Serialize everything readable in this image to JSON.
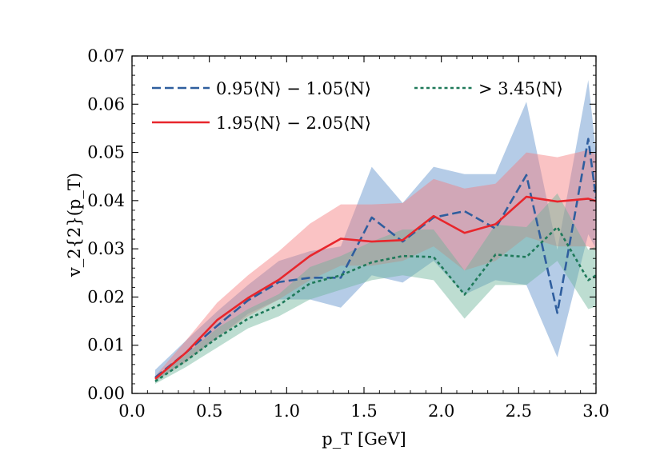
{
  "chart_data": {
    "type": "line",
    "title": "",
    "xlabel": "p_T [GeV]",
    "ylabel": "v_2{2}(p_T)",
    "xlim": [
      0.0,
      3.0
    ],
    "ylim": [
      0.0,
      0.07
    ],
    "xticks": [
      "0.0",
      "0.5",
      "1.0",
      "1.5",
      "2.0",
      "2.5",
      "3.0"
    ],
    "yticks": [
      "0.00",
      "0.01",
      "0.02",
      "0.03",
      "0.04",
      "0.05",
      "0.06",
      "0.07"
    ],
    "grid": false,
    "legend": "top-left",
    "x": [
      0.15,
      0.35,
      0.55,
      0.75,
      0.95,
      1.15,
      1.35,
      1.55,
      1.75,
      1.95,
      2.15,
      2.35,
      2.55,
      2.75,
      2.95,
      3.0
    ],
    "series": [
      {
        "name": "0.95⟨N⟩ − 1.05⟨N⟩",
        "style": "dashed",
        "color": "#2f5e9e",
        "fill": "#5b8fc9",
        "values": [
          0.0033,
          0.0085,
          0.014,
          0.0193,
          0.0231,
          0.024,
          0.024,
          0.0365,
          0.0315,
          0.0365,
          0.0378,
          0.0342,
          0.0453,
          0.0167,
          0.0528,
          0.0405
        ],
        "lower": [
          0.0025,
          0.0068,
          0.0115,
          0.0165,
          0.0195,
          0.0195,
          0.0178,
          0.0245,
          0.023,
          0.0275,
          0.0205,
          0.0235,
          0.0225,
          0.0075,
          0.033,
          0.03
        ],
        "upper": [
          0.0049,
          0.011,
          0.017,
          0.0225,
          0.0275,
          0.0295,
          0.0305,
          0.047,
          0.0395,
          0.047,
          0.0455,
          0.0455,
          0.0605,
          0.0298,
          0.065,
          0.05
        ]
      },
      {
        "name": "1.95⟨N⟩ − 2.05⟨N⟩",
        "style": "solid",
        "color": "#e8262c",
        "fill": "#f47a7c",
        "values": [
          0.003,
          0.0085,
          0.0152,
          0.0198,
          0.0236,
          0.0285,
          0.0321,
          0.0315,
          0.0318,
          0.0368,
          0.0333,
          0.0351,
          0.0408,
          0.0398,
          0.0404,
          0.0399
        ],
        "lower": [
          0.0025,
          0.0065,
          0.0115,
          0.016,
          0.0195,
          0.0235,
          0.0265,
          0.0265,
          0.0275,
          0.0305,
          0.0255,
          0.0275,
          0.0325,
          0.0305,
          0.0305,
          0.0295
        ],
        "upper": [
          0.0036,
          0.011,
          0.0188,
          0.0245,
          0.0295,
          0.0352,
          0.0392,
          0.0392,
          0.0395,
          0.0445,
          0.0425,
          0.0435,
          0.05,
          0.049,
          0.0505,
          0.0495
        ]
      },
      {
        "name": "> 3.45⟨N⟩",
        "style": "dotted",
        "color": "#1f7a5a",
        "fill": "#6cb49a",
        "values": [
          0.0025,
          0.0068,
          0.0115,
          0.0155,
          0.0183,
          0.0228,
          0.0245,
          0.0272,
          0.0285,
          0.0283,
          0.0205,
          0.0288,
          0.0283,
          0.0345,
          0.0235,
          0.0245
        ],
        "lower": [
          0.002,
          0.0055,
          0.0095,
          0.0135,
          0.016,
          0.0195,
          0.0215,
          0.0235,
          0.0245,
          0.0235,
          0.0155,
          0.0225,
          0.0225,
          0.0275,
          0.0175,
          0.018
        ],
        "upper": [
          0.003,
          0.0081,
          0.0135,
          0.0175,
          0.0206,
          0.0262,
          0.0285,
          0.0315,
          0.034,
          0.034,
          0.0255,
          0.035,
          0.0345,
          0.0415,
          0.0298,
          0.0305
        ]
      }
    ]
  }
}
